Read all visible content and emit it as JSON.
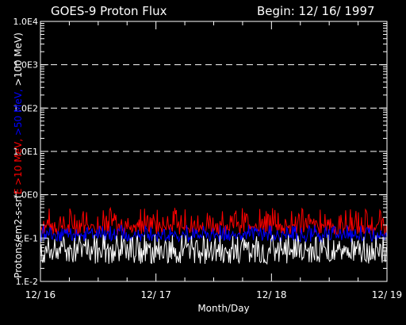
{
  "header": {
    "title": "GOES-9 Proton Flux",
    "begin": "Begin: 12/ 16/ 1997"
  },
  "colors": {
    "background": "#000000",
    "foreground": "#ffffff",
    "series_10mev": "#ff0000",
    "series_50mev": "#0000ff",
    "series_100mev": "#ffffff"
  },
  "chart_data": {
    "type": "line",
    "title": "GOES-9 Proton Flux",
    "subtitle": "Begin: 12/ 16/ 1997",
    "xlabel": "Month/Day",
    "ylabel_parts": [
      {
        "text": "Protons/cm2-s-sr(",
        "color": "#ffffff"
      },
      {
        "text": "E >10 MeV, ",
        "color": "#ff0000"
      },
      {
        "text": ">50 MeV, ",
        "color": "#0000ff"
      },
      {
        "text": ">100 MeV",
        "color": "#ffffff"
      },
      {
        "text": ")",
        "color": "#ffffff"
      }
    ],
    "y_scale": "log",
    "ylim": [
      0.01,
      10000
    ],
    "y_ticks": [
      {
        "value": 0.01,
        "label": "1.E-2"
      },
      {
        "value": 0.1,
        "label": "1.E-1"
      },
      {
        "value": 1,
        "label": "1.0E0"
      },
      {
        "value": 10,
        "label": "1.0E1"
      },
      {
        "value": 100,
        "label": "1.0E2"
      },
      {
        "value": 1000,
        "label": "1.0E3"
      },
      {
        "value": 10000,
        "label": "1.0E4"
      }
    ],
    "gridlines_y": [
      1,
      10,
      100,
      1000
    ],
    "xlim": [
      "1997-12-16",
      "1997-12-19"
    ],
    "x_ticks": [
      {
        "value": "1997-12-16",
        "label": "12/ 16"
      },
      {
        "value": "1997-12-17",
        "label": "12/ 17"
      },
      {
        "value": "1997-12-18",
        "label": "12/ 18"
      },
      {
        "value": "1997-12-19",
        "label": "12/ 19"
      }
    ],
    "series": [
      {
        "key": "gt10",
        "color": "#ff0000",
        "typical": 0.2,
        "low": 0.12,
        "high": 0.5
      },
      {
        "key": "gt50",
        "color": "#0000ff",
        "typical": 0.12,
        "low": 0.08,
        "high": 0.2
      },
      {
        "key": "gt100",
        "color": "#ffffff",
        "typical": 0.055,
        "low": 0.025,
        "high": 0.12
      }
    ]
  }
}
